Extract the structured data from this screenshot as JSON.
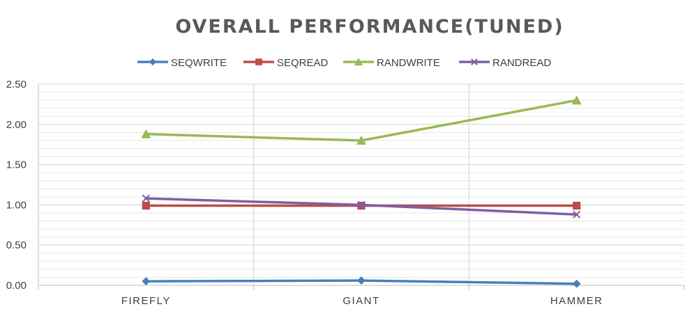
{
  "chart_data": {
    "type": "line",
    "title": "OVERALL PERFORMANCE(TUNED)",
    "xlabel": "",
    "ylabel": "",
    "categories": [
      "FIREFLY",
      "GIANT",
      "HAMMER"
    ],
    "ylim": [
      0,
      2.5
    ],
    "yticks": [
      "0.00",
      "0.50",
      "1.00",
      "1.50",
      "2.00",
      "2.50"
    ],
    "grid": true,
    "legend_position": "top",
    "series": [
      {
        "name": "SEQWRITE",
        "color": "#4a7ebb",
        "marker": "diamond",
        "values": [
          0.05,
          0.06,
          0.02
        ]
      },
      {
        "name": "SEQREAD",
        "color": "#be4b48",
        "marker": "square",
        "values": [
          0.99,
          0.99,
          0.99
        ]
      },
      {
        "name": "RANDWRITE",
        "color": "#98b954",
        "marker": "triangle",
        "values": [
          1.88,
          1.8,
          2.3
        ]
      },
      {
        "name": "RANDREAD",
        "color": "#7d60a0",
        "marker": "x",
        "values": [
          1.08,
          1.0,
          0.88
        ]
      }
    ]
  }
}
